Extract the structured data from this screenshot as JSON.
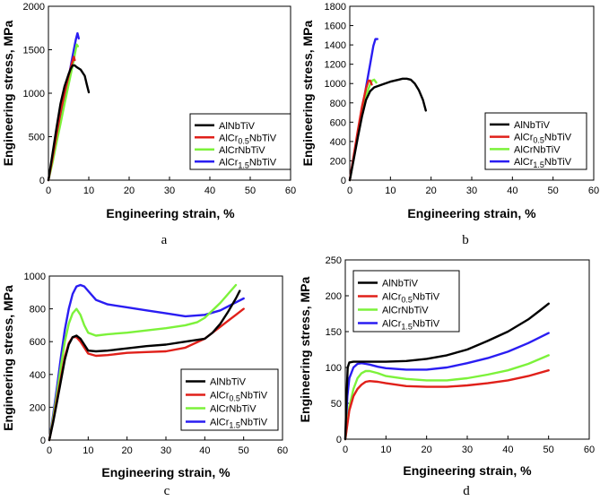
{
  "colors": {
    "AlNbTiV": "#000000",
    "AlCr0.5NbTiV": "#e0201a",
    "AlCrNbTiV": "#7cf23a",
    "AlCr1.5NbTiV": "#2a1df2"
  },
  "chart_data": [
    {
      "type": "line",
      "panel_label": "a",
      "xlabel": "Engineering strain, %",
      "ylabel": "Engineering stress, MPa",
      "xlim": [
        0,
        60
      ],
      "ylim": [
        0,
        2000
      ],
      "xticks": [
        "0",
        "10",
        "20",
        "30",
        "40",
        "50",
        "60"
      ],
      "yticks": [
        "0",
        "500",
        "1000",
        "1500",
        "2000"
      ],
      "grid": false,
      "legend_position": "lower-right",
      "series": [
        {
          "name": "AlNbTiV",
          "x": [
            0,
            1,
            2,
            3,
            4,
            5,
            5.5,
            6,
            6.5,
            7,
            8,
            9,
            9.5,
            10
          ],
          "y": [
            0,
            300,
            600,
            880,
            1080,
            1220,
            1280,
            1320,
            1320,
            1300,
            1270,
            1200,
            1100,
            1010
          ]
        },
        {
          "name": "AlCr0.5NbTiV",
          "x": [
            0,
            1,
            2,
            3,
            4,
            5,
            5.8,
            6.3,
            6.5
          ],
          "y": [
            0,
            250,
            520,
            780,
            1000,
            1200,
            1340,
            1420,
            1380
          ]
        },
        {
          "name": "AlCrNbTiV",
          "x": [
            0,
            1,
            2,
            3,
            4,
            5,
            6,
            6.5,
            7,
            7.3
          ],
          "y": [
            0,
            200,
            430,
            650,
            880,
            1100,
            1320,
            1440,
            1560,
            1540
          ]
        },
        {
          "name": "AlCr1.5NbTiV",
          "x": [
            0,
            1,
            2,
            3,
            4,
            5,
            6,
            6.8,
            7.2,
            7.5
          ],
          "y": [
            0,
            230,
            470,
            720,
            950,
            1180,
            1430,
            1620,
            1690,
            1630
          ]
        }
      ]
    },
    {
      "type": "line",
      "panel_label": "b",
      "xlabel": "Engineering strain, %",
      "ylabel": "Engineering stress, MPa",
      "xlim": [
        0,
        60
      ],
      "ylim": [
        0,
        1800
      ],
      "xticks": [
        "0",
        "10",
        "20",
        "30",
        "40",
        "50",
        "60"
      ],
      "yticks": [
        "0",
        "200",
        "400",
        "600",
        "800",
        "1000",
        "1200",
        "1400",
        "1600",
        "1800"
      ],
      "grid": false,
      "legend_position": "lower-right",
      "series": [
        {
          "name": "AlNbTiV",
          "x": [
            0,
            1,
            2,
            3,
            4,
            5,
            6,
            8,
            10,
            12,
            13,
            14,
            15,
            16,
            17,
            18,
            18.7
          ],
          "y": [
            0,
            220,
            450,
            660,
            830,
            920,
            960,
            990,
            1020,
            1040,
            1050,
            1050,
            1040,
            1000,
            930,
            830,
            720
          ]
        },
        {
          "name": "AlCr0.5NbTiV",
          "x": [
            0,
            1,
            2,
            3,
            4,
            4.6,
            5,
            5.4
          ],
          "y": [
            0,
            260,
            520,
            760,
            950,
            1030,
            1030,
            990
          ]
        },
        {
          "name": "AlCrNbTiV",
          "x": [
            0,
            1,
            2,
            3,
            4,
            5,
            5.5,
            6,
            6.5
          ],
          "y": [
            0,
            230,
            470,
            700,
            880,
            990,
            1030,
            1040,
            1010
          ]
        },
        {
          "name": "AlCr1.5NbTiV",
          "x": [
            0,
            1,
            2,
            3,
            4,
            5,
            5.8,
            6.3,
            6.8
          ],
          "y": [
            0,
            240,
            480,
            720,
            960,
            1200,
            1390,
            1460,
            1460
          ]
        }
      ]
    },
    {
      "type": "line",
      "panel_label": "c",
      "xlabel": "Engineering strain, %",
      "ylabel": "Engineering stress, MPa",
      "xlim": [
        0,
        60
      ],
      "ylim": [
        0,
        1100
      ],
      "xticks": [
        "0",
        "10",
        "20",
        "30",
        "40",
        "50",
        "60"
      ],
      "yticks": [
        "0",
        "200",
        "400",
        "600",
        "800",
        "1000"
      ],
      "grid": false,
      "legend_position": "lower-right",
      "series": [
        {
          "name": "AlNbTiV",
          "x": [
            0,
            1,
            2,
            3,
            4,
            5,
            6,
            7,
            8,
            9,
            10,
            12,
            15,
            20,
            25,
            30,
            35,
            40,
            42,
            44,
            46,
            48,
            49
          ],
          "y": [
            0,
            120,
            260,
            400,
            540,
            640,
            690,
            700,
            680,
            640,
            600,
            595,
            600,
            615,
            630,
            640,
            660,
            680,
            720,
            780,
            860,
            950,
            1000
          ]
        },
        {
          "name": "AlCr0.5NbTiV",
          "x": [
            0,
            1,
            2,
            3,
            4,
            5,
            6,
            7,
            8,
            9,
            10,
            12,
            15,
            20,
            25,
            30,
            35,
            40,
            42,
            44,
            46,
            48,
            50
          ],
          "y": [
            0,
            130,
            280,
            420,
            560,
            650,
            690,
            690,
            660,
            620,
            580,
            565,
            570,
            585,
            590,
            595,
            620,
            680,
            720,
            760,
            800,
            840,
            880
          ]
        },
        {
          "name": "AlCrNbTiV",
          "x": [
            0,
            1,
            2,
            3,
            4,
            5,
            6,
            7,
            8,
            9,
            10,
            12,
            15,
            20,
            25,
            30,
            35,
            38,
            40,
            42,
            44,
            46,
            48
          ],
          "y": [
            0,
            150,
            320,
            500,
            660,
            780,
            850,
            880,
            840,
            770,
            720,
            700,
            710,
            720,
            735,
            750,
            770,
            790,
            820,
            870,
            920,
            980,
            1040
          ]
        },
        {
          "name": "AlCr1.5NbTiV",
          "x": [
            0,
            1,
            2,
            3,
            4,
            5,
            6,
            7,
            8,
            9,
            10,
            12,
            15,
            20,
            25,
            30,
            35,
            40,
            44,
            47,
            50
          ],
          "y": [
            0,
            170,
            360,
            560,
            740,
            880,
            980,
            1030,
            1040,
            1030,
            1000,
            940,
            910,
            890,
            870,
            850,
            830,
            840,
            870,
            910,
            950
          ]
        }
      ]
    },
    {
      "type": "line",
      "panel_label": "d",
      "xlabel": "Engineering strain, %",
      "ylabel": "Engineering stress, MPa",
      "xlim": [
        0,
        60
      ],
      "ylim": [
        0,
        250
      ],
      "xticks": [
        "0",
        "10",
        "20",
        "30",
        "40",
        "50",
        "60"
      ],
      "yticks": [
        "0",
        "50",
        "100",
        "150",
        "200",
        "250"
      ],
      "grid": false,
      "legend_position": "top-left",
      "series": [
        {
          "name": "AlNbTiV",
          "x": [
            0,
            0.3,
            0.6,
            1,
            2,
            5,
            10,
            15,
            20,
            25,
            30,
            35,
            40,
            45,
            48,
            50
          ],
          "y": [
            0,
            60,
            100,
            107,
            108,
            108,
            108,
            109,
            112,
            117,
            125,
            137,
            150,
            167,
            180,
            189
          ]
        },
        {
          "name": "AlCr0.5NbTiV",
          "x": [
            0,
            1,
            2,
            3,
            4,
            5,
            6,
            8,
            10,
            15,
            20,
            25,
            30,
            35,
            40,
            45,
            50
          ],
          "y": [
            0,
            40,
            60,
            70,
            76,
            80,
            81,
            80,
            78,
            74,
            73,
            73,
            75,
            78,
            82,
            88,
            96
          ]
        },
        {
          "name": "AlCrNbTiV",
          "x": [
            0,
            1,
            2,
            3,
            4,
            5,
            6,
            8,
            10,
            15,
            20,
            25,
            30,
            35,
            40,
            45,
            50
          ],
          "y": [
            0,
            45,
            70,
            85,
            92,
            95,
            95,
            92,
            88,
            84,
            82,
            82,
            85,
            90,
            96,
            105,
            117
          ]
        },
        {
          "name": "AlCr1.5NbTiV",
          "x": [
            0,
            0.5,
            1,
            2,
            3,
            4,
            5,
            6,
            8,
            10,
            15,
            20,
            25,
            30,
            35,
            40,
            45,
            50
          ],
          "y": [
            0,
            60,
            85,
            100,
            105,
            106,
            105,
            104,
            101,
            99,
            97,
            97,
            100,
            106,
            113,
            122,
            134,
            148
          ]
        }
      ]
    }
  ]
}
